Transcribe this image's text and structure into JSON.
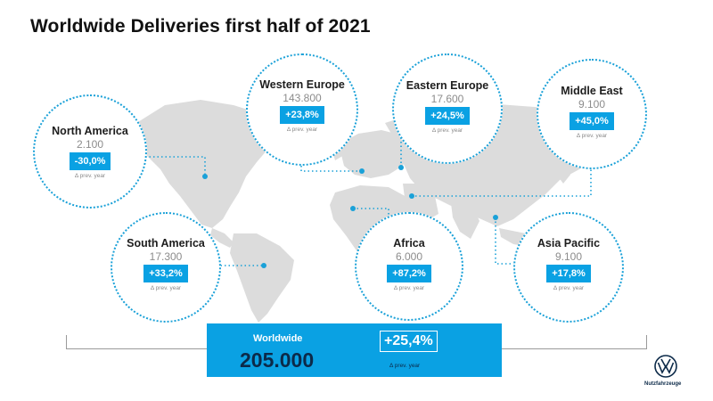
{
  "title": "Worldwide Deliveries first half of 2021",
  "regions": {
    "north_america": {
      "name": "North America",
      "value": "2.100",
      "change": "-30,0%",
      "prev": "Δ prev. year"
    },
    "western_europe": {
      "name": "Western Europe",
      "value": "143.800",
      "change": "+23,8%",
      "prev": "Δ prev. year"
    },
    "eastern_europe": {
      "name": "Eastern Europe",
      "value": "17.600",
      "change": "+24,5%",
      "prev": "Δ prev. year"
    },
    "middle_east": {
      "name": "Middle East",
      "value": "9.100",
      "change": "+45,0%",
      "prev": "Δ prev. year"
    },
    "south_america": {
      "name": "South America",
      "value": "17.300",
      "change": "+33,2%",
      "prev": "Δ prev. year"
    },
    "africa": {
      "name": "Africa",
      "value": "6.000",
      "change": "+87,2%",
      "prev": "Δ prev. year"
    },
    "asia_pacific": {
      "name": "Asia Pacific",
      "value": "9.100",
      "change": "+17,8%",
      "prev": "Δ prev. year"
    }
  },
  "worldwide": {
    "label": "Worldwide",
    "value": "205.000",
    "change": "+25,4%",
    "prev": "Δ prev. year"
  },
  "brand": {
    "tagline": "Nutzfahrzeuge"
  },
  "colors": {
    "accent": "#0aa1e3",
    "map_gray": "#dcdcdc",
    "navy": "#0c2a49"
  }
}
